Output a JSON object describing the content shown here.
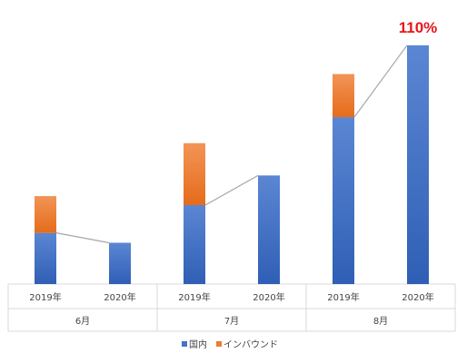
{
  "chart_data": {
    "type": "bar",
    "stacked": true,
    "groups": [
      "6月",
      "7月",
      "8月"
    ],
    "categories": [
      "2019年",
      "2020年",
      "2019年",
      "2020年",
      "2019年",
      "2020年"
    ],
    "group_of_category": [
      0,
      0,
      1,
      1,
      2,
      2
    ],
    "series": [
      {
        "name": "国内",
        "color": "#4472c4",
        "values": [
          57,
          46,
          88,
          121,
          186,
          266
        ]
      },
      {
        "name": "インバウンド",
        "color": "#ed7d31",
        "values": [
          41,
          0,
          69,
          0,
          48,
          0
        ]
      }
    ],
    "trend_line": {
      "color": "#a6a6a6",
      "values": [
        57,
        46,
        88,
        121,
        186,
        266
      ]
    },
    "annotation": {
      "text": "110%",
      "category_index": 5
    },
    "ylim": [
      0,
      270
    ],
    "legend": "bottom",
    "grid": false
  }
}
